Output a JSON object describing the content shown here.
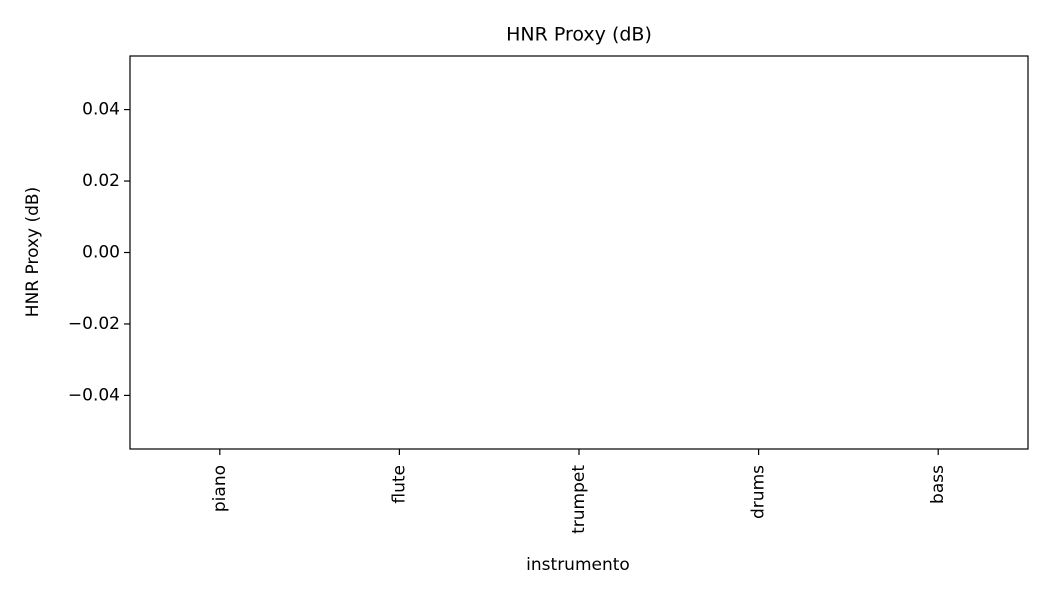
{
  "chart_data": {
    "type": "bar",
    "title": "HNR Proxy (dB)",
    "x_label": "instrumento",
    "y_label": "HNR Proxy (dB)",
    "categories": [
      "piano",
      "flute",
      "trumpet",
      "drums",
      "bass"
    ],
    "values": [
      0,
      0,
      0,
      0,
      0
    ],
    "color": "#1f77b4",
    "ylim": [
      -0.055,
      0.055
    ],
    "yticks": [
      {
        "value": -0.04,
        "label": "−0.04"
      },
      {
        "value": -0.02,
        "label": "−0.02"
      },
      {
        "value": 0,
        "label": "0.00"
      },
      0.02,
      0.04
    ],
    "grid": false
  }
}
